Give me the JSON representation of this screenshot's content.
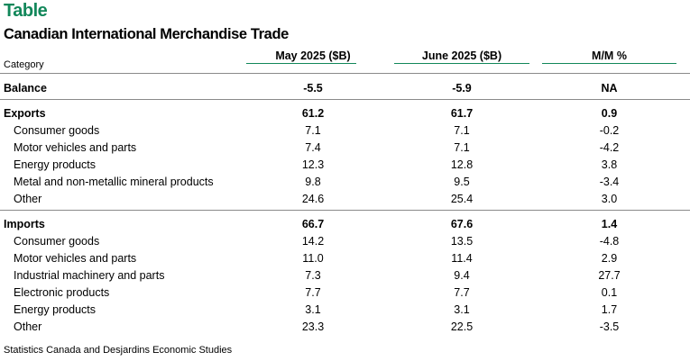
{
  "title": "Table",
  "subtitle": "Canadian International Merchandise Trade",
  "colors": {
    "accent": "#12875a",
    "rule": "#8a8a8a"
  },
  "table": {
    "category_label": "Category",
    "columns": [
      "May 2025 ($B)",
      "June 2025 ($B)",
      "M/M %"
    ],
    "balance": {
      "label": "Balance",
      "values": [
        "-5.5",
        "-5.9",
        "NA"
      ]
    },
    "exports": {
      "label": "Exports",
      "values": [
        "61.2",
        "61.7",
        "0.9"
      ],
      "rows": [
        {
          "label": "Consumer goods",
          "values": [
            "7.1",
            "7.1",
            "-0.2"
          ]
        },
        {
          "label": "Motor vehicles and parts",
          "values": [
            "7.4",
            "7.1",
            "-4.2"
          ]
        },
        {
          "label": "Energy products",
          "values": [
            "12.3",
            "12.8",
            "3.8"
          ]
        },
        {
          "label": "Metal and non-metallic mineral products",
          "values": [
            "9.8",
            "9.5",
            "-3.4"
          ]
        },
        {
          "label": "Other",
          "values": [
            "24.6",
            "25.4",
            "3.0"
          ]
        }
      ]
    },
    "imports": {
      "label": "Imports",
      "values": [
        "66.7",
        "67.6",
        "1.4"
      ],
      "rows": [
        {
          "label": "Consumer goods",
          "values": [
            "14.2",
            "13.5",
            "-4.8"
          ]
        },
        {
          "label": "Motor vehicles and parts",
          "values": [
            "11.0",
            "11.4",
            "2.9"
          ]
        },
        {
          "label": "Industrial machinery and parts",
          "values": [
            "7.3",
            "9.4",
            "27.7"
          ]
        },
        {
          "label": "Electronic products",
          "values": [
            "7.7",
            "7.7",
            "0.1"
          ]
        },
        {
          "label": "Energy products",
          "values": [
            "3.1",
            "3.1",
            "1.7"
          ]
        },
        {
          "label": "Other",
          "values": [
            "23.3",
            "22.5",
            "-3.5"
          ]
        }
      ]
    }
  },
  "source": "Statistics Canada and Desjardins Economic Studies"
}
